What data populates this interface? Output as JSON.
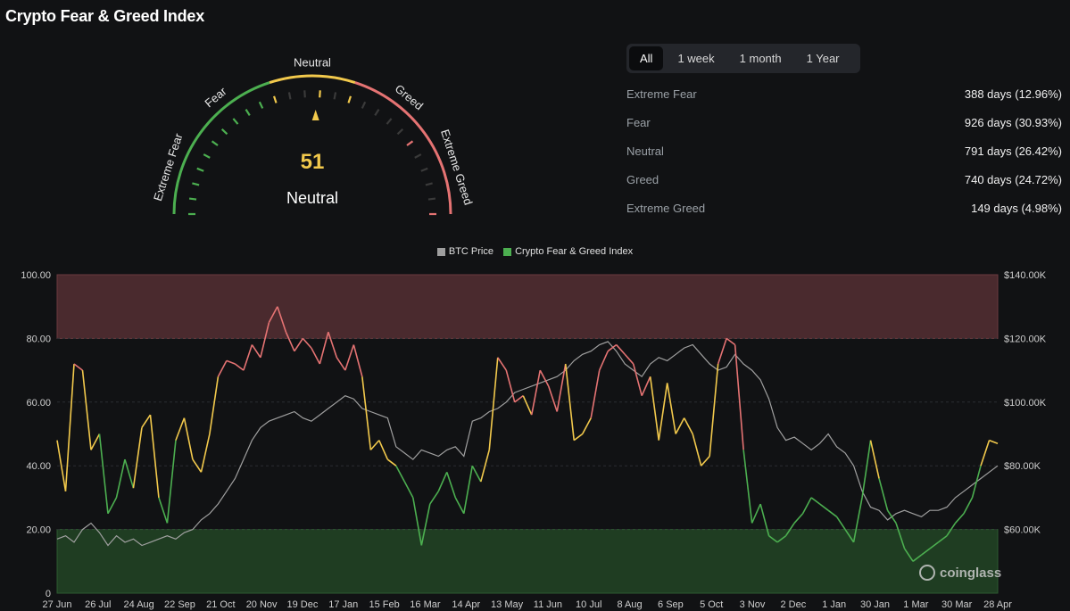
{
  "page": {
    "title": "Crypto Fear & Greed Index"
  },
  "gauge": {
    "value": "51",
    "label": "Neutral",
    "zones": [
      "Extreme Fear",
      "Fear",
      "Neutral",
      "Greed",
      "Extreme Greed"
    ],
    "colors": {
      "fear": "#4caf50",
      "neutral": "#f2c94c",
      "greed": "#e57373",
      "track": "#333333"
    }
  },
  "range_tabs": [
    "All",
    "1 week",
    "1 month",
    "1 Year"
  ],
  "range_active": "All",
  "stats": [
    {
      "label": "Extreme Fear",
      "value": "388 days (12.96%)"
    },
    {
      "label": "Fear",
      "value": "926 days (30.93%)"
    },
    {
      "label": "Neutral",
      "value": "791 days (26.42%)"
    },
    {
      "label": "Greed",
      "value": "740 days (24.72%)"
    },
    {
      "label": "Extreme Greed",
      "value": "149 days (4.98%)"
    }
  ],
  "legend": [
    {
      "name": "BTC Price",
      "color": "#9e9e9e"
    },
    {
      "name": "Crypto Fear & Greed Index",
      "color": "#4caf50"
    }
  ],
  "watermark": "coinglass",
  "chart_data": {
    "type": "line",
    "x_ticks": [
      "27 Jun",
      "26 Jul",
      "24 Aug",
      "22 Sep",
      "21 Oct",
      "20 Nov",
      "19 Dec",
      "17 Jan",
      "15 Feb",
      "16 Mar",
      "14 Apr",
      "13 May",
      "11 Jun",
      "10 Jul",
      "8 Aug",
      "6 Sep",
      "5 Oct",
      "3 Nov",
      "2 Dec",
      "1 Jan",
      "30 Jan",
      "1 Mar",
      "30 Mar",
      "28 Apr"
    ],
    "y_left_ticks": [
      "0",
      "20.00",
      "40.00",
      "60.00",
      "80.00",
      "100.00"
    ],
    "y_left_range": [
      0,
      100
    ],
    "y_right_ticks": [
      "$60.00K",
      "$80.00K",
      "$100.00K",
      "$120.00K",
      "$140.00K"
    ],
    "y_right_range": [
      40000,
      140000
    ],
    "bands": [
      {
        "name": "Extreme Fear",
        "from": 0,
        "to": 20,
        "color": "#1f3d22"
      },
      {
        "name": "Extreme Greed",
        "from": 80,
        "to": 100,
        "color": "#4a2a2e"
      }
    ],
    "thresholds": {
      "fear_below": 40,
      "greed_above": 60
    },
    "series": [
      {
        "name": "Crypto Fear & Greed Index",
        "axis": "left",
        "values": [
          48,
          32,
          72,
          70,
          45,
          50,
          25,
          30,
          42,
          33,
          52,
          56,
          30,
          22,
          48,
          55,
          42,
          38,
          50,
          68,
          73,
          72,
          70,
          78,
          74,
          85,
          90,
          82,
          76,
          80,
          77,
          72,
          82,
          74,
          70,
          78,
          68,
          45,
          48,
          42,
          40,
          35,
          30,
          15,
          28,
          32,
          38,
          30,
          25,
          40,
          35,
          45,
          74,
          70,
          60,
          62,
          56,
          70,
          65,
          57,
          72,
          48,
          50,
          55,
          70,
          76,
          78,
          75,
          72,
          62,
          68,
          48,
          66,
          50,
          55,
          50,
          40,
          43,
          72,
          80,
          78,
          45,
          22,
          28,
          18,
          16,
          18,
          22,
          25,
          30,
          28,
          26,
          24,
          20,
          16,
          30,
          48,
          36,
          26,
          22,
          14,
          10,
          12,
          14,
          16,
          18,
          22,
          25,
          30,
          40,
          48,
          47
        ]
      },
      {
        "name": "BTC Price",
        "axis": "right",
        "values": [
          57000,
          58000,
          56000,
          60000,
          62000,
          59000,
          55000,
          58000,
          56000,
          57000,
          55000,
          56000,
          57000,
          58000,
          57000,
          59000,
          60000,
          63000,
          65000,
          68000,
          72000,
          76000,
          82000,
          88000,
          92000,
          94000,
          95000,
          96000,
          97000,
          95000,
          94000,
          96000,
          98000,
          100000,
          102000,
          101000,
          98000,
          97000,
          96000,
          95000,
          86000,
          84000,
          82000,
          85000,
          84000,
          83000,
          85000,
          86000,
          83000,
          94000,
          95000,
          97000,
          98000,
          100000,
          103000,
          104000,
          105000,
          106000,
          107000,
          108000,
          110000,
          113000,
          115000,
          116000,
          118000,
          119000,
          116000,
          112000,
          110000,
          108000,
          112000,
          114000,
          113000,
          115000,
          117000,
          118000,
          115000,
          112000,
          110000,
          111000,
          115000,
          112000,
          110000,
          107000,
          101000,
          92000,
          88000,
          89000,
          87000,
          85000,
          87000,
          90000,
          86000,
          84000,
          80000,
          72000,
          67000,
          66000,
          63000,
          65000,
          66000,
          65000,
          64000,
          66000,
          66000,
          67000,
          70000,
          72000,
          74000,
          76000,
          78000,
          80000
        ]
      }
    ]
  }
}
